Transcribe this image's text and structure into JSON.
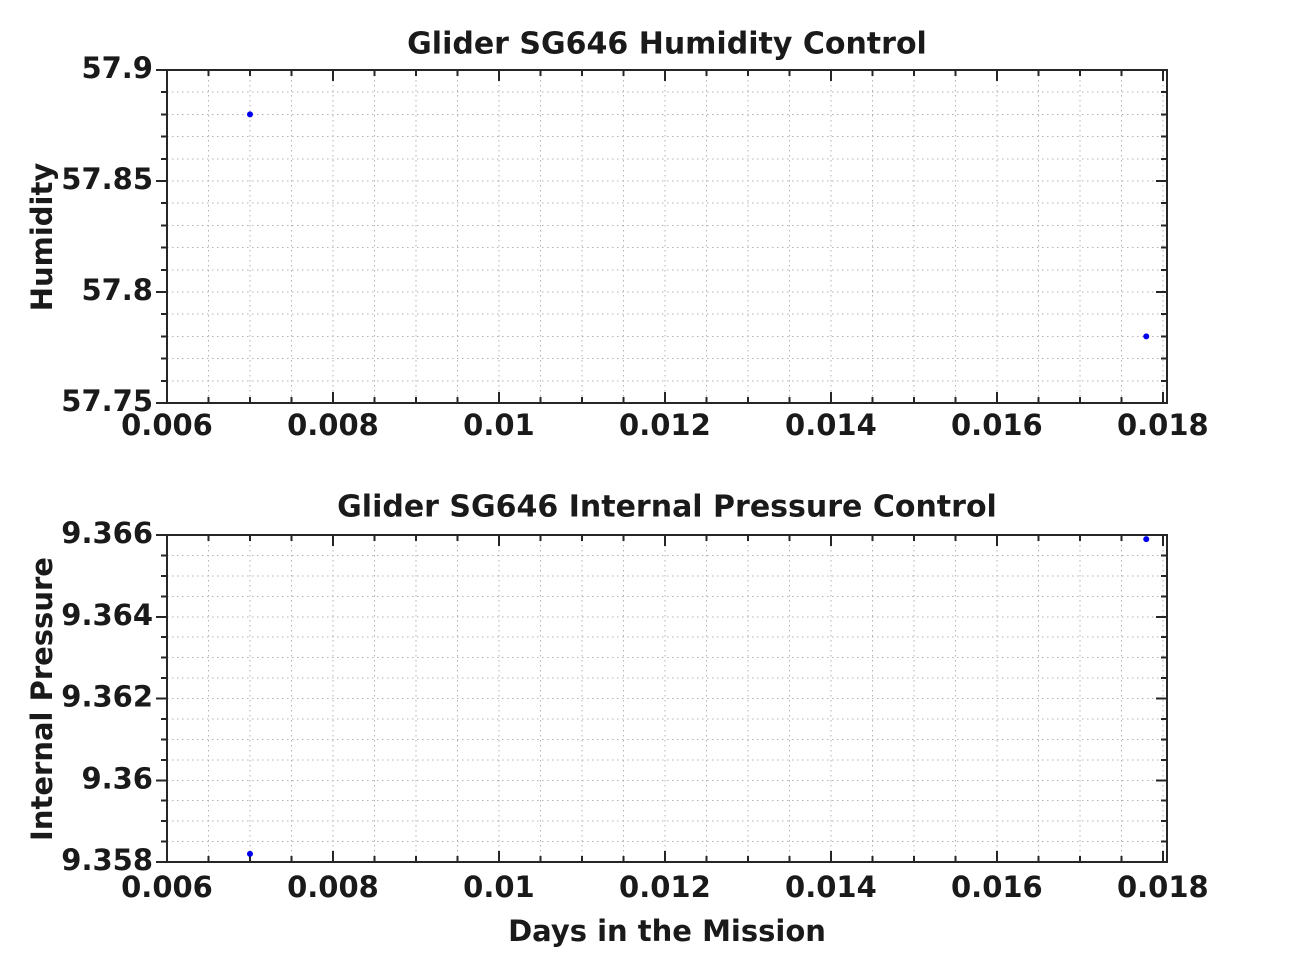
{
  "figure": {
    "background": "#ffffff",
    "marker_color": "#0000ee",
    "grid_color": "#b3b3b3",
    "axis_color": "#262626",
    "text_color": "#1a1a1a"
  },
  "chart_data": [
    {
      "type": "scatter",
      "title": "Glider SG646 Humidity Control",
      "xlabel": "",
      "ylabel": "Humidity",
      "x": [
        0.007,
        0.0178
      ],
      "y": [
        57.88,
        57.78
      ],
      "xlim": [
        0.006,
        0.01805
      ],
      "ylim": [
        57.75,
        57.9
      ],
      "xticks": [
        0.006,
        0.008,
        0.01,
        0.012,
        0.014,
        0.016,
        0.018
      ],
      "xtick_labels": [
        "0.006",
        "0.008",
        "0.01",
        "0.012",
        "0.014",
        "0.016",
        "0.018"
      ],
      "yticks": [
        57.75,
        57.8,
        57.85,
        57.9
      ],
      "ytick_labels": [
        "57.75",
        "57.8",
        "57.85",
        "57.9"
      ],
      "x_minor_step": 0.0005,
      "y_minor_step": 0.01,
      "grid": "both-minor-dotted",
      "legend": null,
      "marker": "dot"
    },
    {
      "type": "scatter",
      "title": "Glider SG646 Internal Pressure Control",
      "xlabel": "Days in the Mission",
      "ylabel": "Internal Pressure",
      "x": [
        0.007,
        0.0178
      ],
      "y": [
        9.3582,
        9.3659
      ],
      "xlim": [
        0.006,
        0.01805
      ],
      "ylim": [
        9.358,
        9.366
      ],
      "xticks": [
        0.006,
        0.008,
        0.01,
        0.012,
        0.014,
        0.016,
        0.018
      ],
      "xtick_labels": [
        "0.006",
        "0.008",
        "0.01",
        "0.012",
        "0.014",
        "0.016",
        "0.018"
      ],
      "yticks": [
        9.358,
        9.36,
        9.362,
        9.364,
        9.366
      ],
      "ytick_labels": [
        "9.358",
        "9.36",
        "9.362",
        "9.364",
        "9.366"
      ],
      "x_minor_step": 0.0005,
      "y_minor_step": 0.0005,
      "grid": "both-minor-dotted",
      "legend": null,
      "marker": "dot"
    }
  ]
}
